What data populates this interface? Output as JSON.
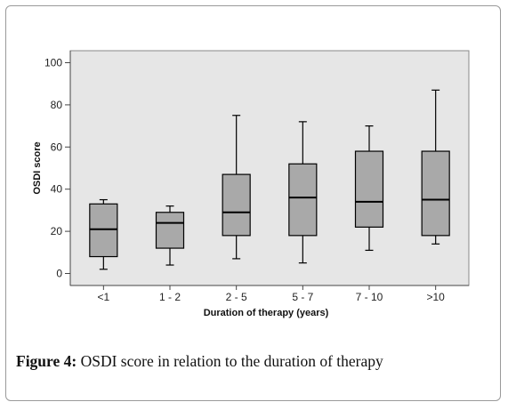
{
  "chart_data": {
    "type": "boxplot",
    "xlabel": "Duration of therapy (years)",
    "ylabel": "OSDI score",
    "ylim": [
      0,
      100
    ],
    "yticks": [
      0,
      20,
      40,
      60,
      80,
      100
    ],
    "grid": false,
    "categories": [
      "<1",
      "1 - 2",
      "2 - 5",
      "5 - 7",
      "7 - 10",
      ">10"
    ],
    "boxes": [
      {
        "min": 2,
        "q1": 8,
        "median": 21,
        "q3": 33,
        "max": 35
      },
      {
        "min": 4,
        "q1": 12,
        "median": 24,
        "q3": 29,
        "max": 32
      },
      {
        "min": 7,
        "q1": 18,
        "median": 29,
        "q3": 47,
        "max": 75
      },
      {
        "min": 5,
        "q1": 18,
        "median": 36,
        "q3": 52,
        "max": 72
      },
      {
        "min": 11,
        "q1": 22,
        "median": 34,
        "q3": 58,
        "max": 70
      },
      {
        "min": 14,
        "q1": 18,
        "median": 35,
        "q3": 58,
        "max": 87
      }
    ],
    "colors": {
      "plot_bg": "#e6e6e6",
      "box_fill": "#a9a9a9",
      "stroke": "#000000"
    }
  },
  "caption": {
    "label": "Figure 4:",
    "text": " OSDI score in relation to the duration of therapy"
  }
}
